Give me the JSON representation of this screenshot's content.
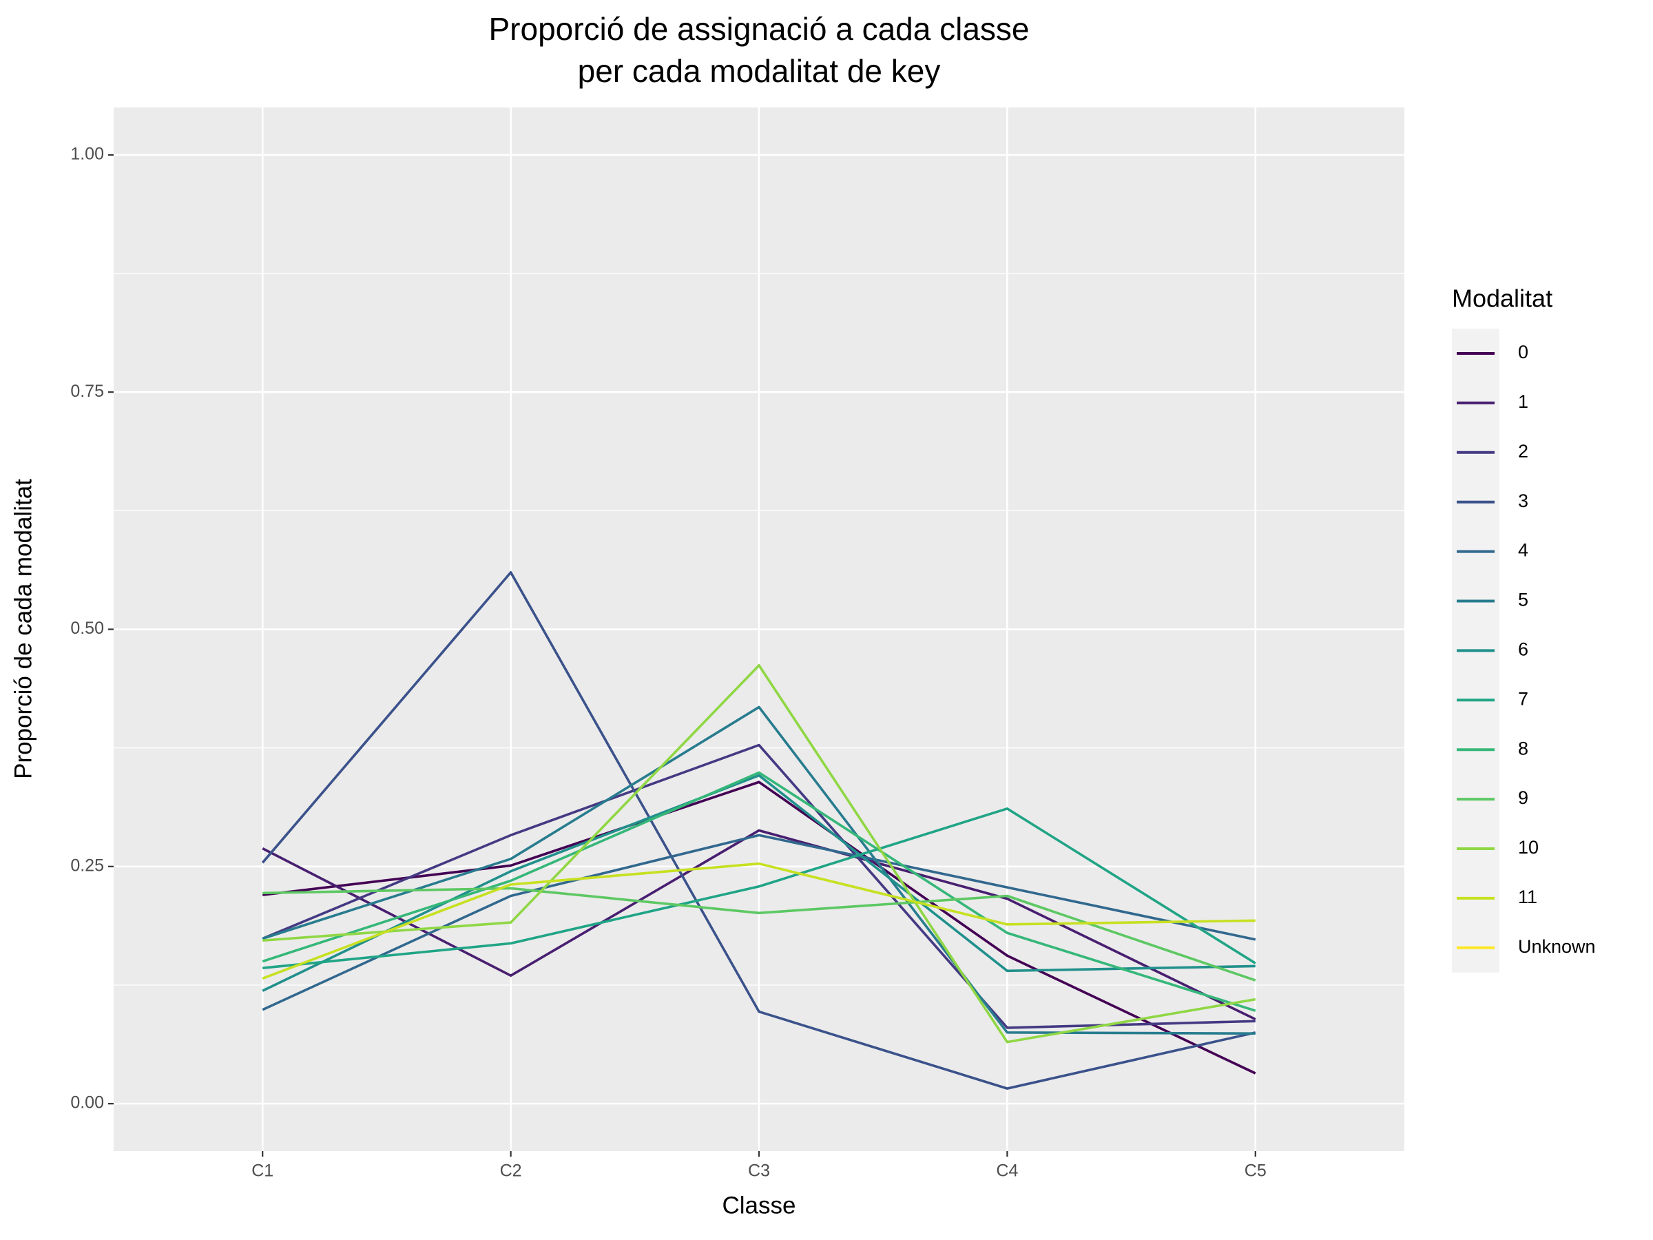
{
  "chart_data": {
    "type": "line",
    "title": [
      "Proporció de assignació a cada classe",
      "per cada modalitat de key"
    ],
    "x_label": "Classe",
    "y_label": "Proporció de cada modalitat",
    "legend_title": "Modalitat",
    "categories": [
      "C1",
      "C2",
      "C3",
      "C4",
      "C5"
    ],
    "ylim": [
      -0.05,
      1.05
    ],
    "yticks": [
      {
        "value": 0,
        "label": "0.00"
      },
      {
        "value": 0.25,
        "label": "0.25"
      },
      {
        "value": 0.5,
        "label": "0.50"
      },
      {
        "value": 0.75,
        "label": "0.75"
      },
      {
        "value": 1,
        "label": "1.00"
      }
    ],
    "grid": true,
    "legend": "right",
    "series": [
      {
        "name": "0",
        "color": "#440154",
        "values": [
          0.22,
          0.251,
          0.339,
          0.156,
          0.032
        ]
      },
      {
        "name": "1",
        "color": "#481F70",
        "values": [
          0.269,
          0.135,
          0.288,
          0.216,
          0.089
        ]
      },
      {
        "name": "2",
        "color": "#443A83",
        "values": [
          0.174,
          0.283,
          0.378,
          0.08,
          0.087
        ]
      },
      {
        "name": "3",
        "color": "#3B528B",
        "values": [
          0.254,
          0.56,
          0.097,
          0.016,
          0.075
        ]
      },
      {
        "name": "4",
        "color": "#31688E",
        "values": [
          0.099,
          0.219,
          0.283,
          0.228,
          0.173
        ]
      },
      {
        "name": "5",
        "color": "#287C8E",
        "values": [
          0.174,
          0.258,
          0.418,
          0.075,
          0.074
        ]
      },
      {
        "name": "6",
        "color": "#21908C",
        "values": [
          0.119,
          0.245,
          0.346,
          0.14,
          0.145
        ]
      },
      {
        "name": "7",
        "color": "#20A486",
        "values": [
          0.143,
          0.169,
          0.229,
          0.311,
          0.148
        ]
      },
      {
        "name": "8",
        "color": "#35B779",
        "values": [
          0.15,
          0.235,
          0.349,
          0.18,
          0.098
        ]
      },
      {
        "name": "9",
        "color": "#5DC863",
        "values": [
          0.222,
          0.227,
          0.201,
          0.219,
          0.13
        ]
      },
      {
        "name": "10",
        "color": "#8FD744",
        "values": [
          0.172,
          0.191,
          0.462,
          0.065,
          0.11
        ]
      },
      {
        "name": "11",
        "color": "#C7E020",
        "values": [
          0.132,
          0.231,
          0.253,
          0.189,
          0.193
        ]
      },
      {
        "name": "Unknown",
        "color": "#FDE725",
        "values": [
          null,
          null,
          null,
          null,
          null
        ]
      }
    ]
  }
}
